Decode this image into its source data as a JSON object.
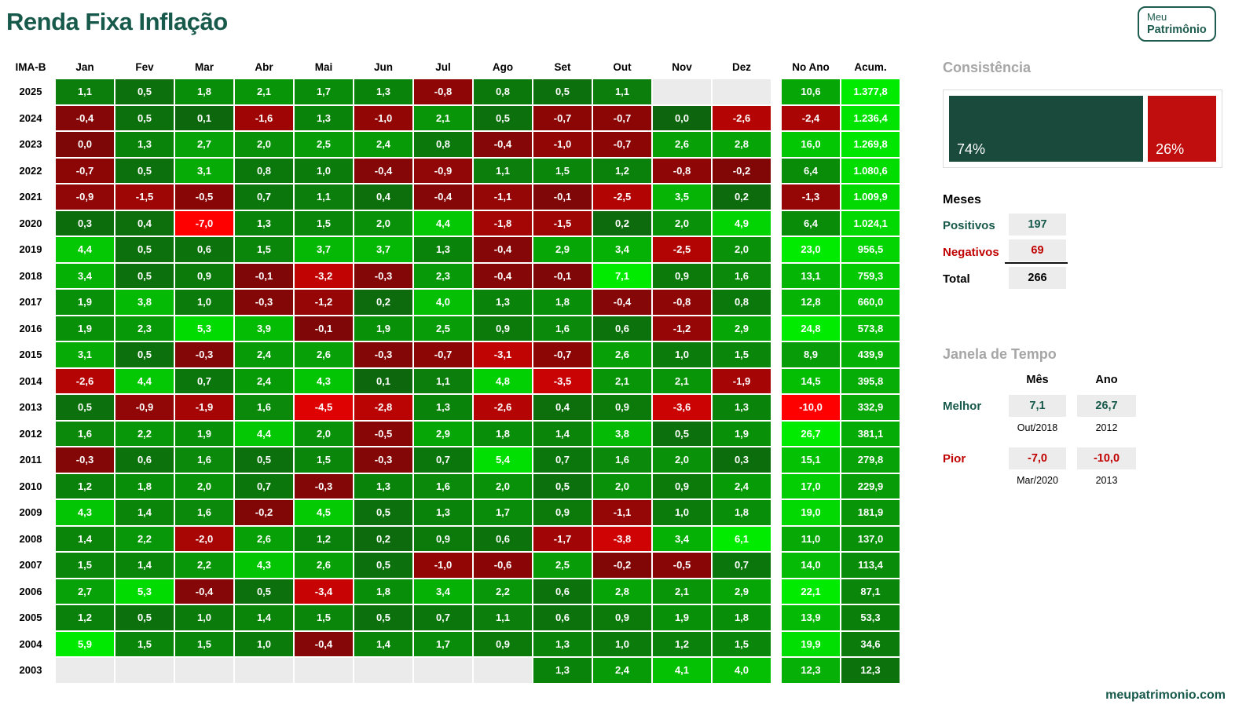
{
  "title": "Renda Fixa Inflação",
  "logo": {
    "line1": "Meu",
    "line2": "Patrimônio"
  },
  "footer": {
    "site": "meupatrimonio.com"
  },
  "colors": {
    "brand_green": "#17594a",
    "positive_dark_green": "#0d660d",
    "positive_bright_green": "#00eb00",
    "negative_dark_red": "#7d0707",
    "negative_bright_red": "#ff0000",
    "consistency_green": "#1a4a3c",
    "consistency_red": "#c00d0d",
    "blank_cell_gray": "#ebebeb",
    "value_box_gray": "#ececec",
    "section_title_gray": "#a6a6a6"
  },
  "chart_data": {
    "type": "heatmap",
    "title": "Renda Fixa Inflação",
    "index_label": "IMA-B",
    "columns": [
      "Jan",
      "Fev",
      "Mar",
      "Abr",
      "Mai",
      "Jun",
      "Jul",
      "Ago",
      "Set",
      "Out",
      "Nov",
      "Dez"
    ],
    "summary_columns": [
      "No Ano",
      "Acum."
    ],
    "rows": [
      {
        "year": "2025",
        "months": [
          "1,1",
          "0,5",
          "1,8",
          "2,1",
          "1,7",
          "1,3",
          "-0,8",
          "0,8",
          "0,5",
          "1,1",
          "",
          ""
        ],
        "no_ano": "10,6",
        "acum": "1.377,8"
      },
      {
        "year": "2024",
        "months": [
          "-0,4",
          "0,5",
          "0,1",
          "-1,6",
          "1,3",
          "-1,0",
          "2,1",
          "0,5",
          "-0,7",
          "-0,7",
          "0,0",
          "-2,6"
        ],
        "no_ano": "-2,4",
        "acum": "1.236,4"
      },
      {
        "year": "2023",
        "months": [
          "0,0",
          "1,3",
          "2,7",
          "2,0",
          "2,5",
          "2,4",
          "0,8",
          "-0,4",
          "-1,0",
          "-0,7",
          "2,6",
          "2,8"
        ],
        "no_ano": "16,0",
        "acum": "1.269,8"
      },
      {
        "year": "2022",
        "months": [
          "-0,7",
          "0,5",
          "3,1",
          "0,8",
          "1,0",
          "-0,4",
          "-0,9",
          "1,1",
          "1,5",
          "1,2",
          "-0,8",
          "-0,2"
        ],
        "no_ano": "6,4",
        "acum": "1.080,6"
      },
      {
        "year": "2021",
        "months": [
          "-0,9",
          "-1,5",
          "-0,5",
          "0,7",
          "1,1",
          "0,4",
          "-0,4",
          "-1,1",
          "-0,1",
          "-2,5",
          "3,5",
          "0,2"
        ],
        "no_ano": "-1,3",
        "acum": "1.009,9"
      },
      {
        "year": "2020",
        "months": [
          "0,3",
          "0,4",
          "-7,0",
          "1,3",
          "1,5",
          "2,0",
          "4,4",
          "-1,8",
          "-1,5",
          "0,2",
          "2,0",
          "4,9"
        ],
        "no_ano": "6,4",
        "acum": "1.024,1"
      },
      {
        "year": "2019",
        "months": [
          "4,4",
          "0,5",
          "0,6",
          "1,5",
          "3,7",
          "3,7",
          "1,3",
          "-0,4",
          "2,9",
          "3,4",
          "-2,5",
          "2,0"
        ],
        "no_ano": "23,0",
        "acum": "956,5"
      },
      {
        "year": "2018",
        "months": [
          "3,4",
          "0,5",
          "0,9",
          "-0,1",
          "-3,2",
          "-0,3",
          "2,3",
          "-0,4",
          "-0,1",
          "7,1",
          "0,9",
          "1,6"
        ],
        "no_ano": "13,1",
        "acum": "759,3"
      },
      {
        "year": "2017",
        "months": [
          "1,9",
          "3,8",
          "1,0",
          "-0,3",
          "-1,2",
          "0,2",
          "4,0",
          "1,3",
          "1,8",
          "-0,4",
          "-0,8",
          "0,8"
        ],
        "no_ano": "12,8",
        "acum": "660,0"
      },
      {
        "year": "2016",
        "months": [
          "1,9",
          "2,3",
          "5,3",
          "3,9",
          "-0,1",
          "1,9",
          "2,5",
          "0,9",
          "1,6",
          "0,6",
          "-1,2",
          "2,9"
        ],
        "no_ano": "24,8",
        "acum": "573,8"
      },
      {
        "year": "2015",
        "months": [
          "3,1",
          "0,5",
          "-0,3",
          "2,4",
          "2,6",
          "-0,3",
          "-0,7",
          "-3,1",
          "-0,7",
          "2,6",
          "1,0",
          "1,5"
        ],
        "no_ano": "8,9",
        "acum": "439,9"
      },
      {
        "year": "2014",
        "months": [
          "-2,6",
          "4,4",
          "0,7",
          "2,4",
          "4,3",
          "0,1",
          "1,1",
          "4,8",
          "-3,5",
          "2,1",
          "2,1",
          "-1,9"
        ],
        "no_ano": "14,5",
        "acum": "395,8"
      },
      {
        "year": "2013",
        "months": [
          "0,5",
          "-0,9",
          "-1,9",
          "1,6",
          "-4,5",
          "-2,8",
          "1,3",
          "-2,6",
          "0,4",
          "0,9",
          "-3,6",
          "1,3"
        ],
        "no_ano": "-10,0",
        "acum": "332,9"
      },
      {
        "year": "2012",
        "months": [
          "1,6",
          "2,2",
          "1,9",
          "4,4",
          "2,0",
          "-0,5",
          "2,9",
          "1,8",
          "1,4",
          "3,8",
          "0,5",
          "1,9"
        ],
        "no_ano": "26,7",
        "acum": "381,1"
      },
      {
        "year": "2011",
        "months": [
          "-0,3",
          "0,6",
          "1,6",
          "0,5",
          "1,5",
          "-0,3",
          "0,7",
          "5,4",
          "0,7",
          "1,6",
          "2,0",
          "0,3"
        ],
        "no_ano": "15,1",
        "acum": "279,8"
      },
      {
        "year": "2010",
        "months": [
          "1,2",
          "1,8",
          "2,0",
          "0,7",
          "-0,3",
          "1,3",
          "1,6",
          "2,0",
          "0,5",
          "2,0",
          "0,9",
          "2,4"
        ],
        "no_ano": "17,0",
        "acum": "229,9"
      },
      {
        "year": "2009",
        "months": [
          "4,3",
          "1,4",
          "1,6",
          "-0,2",
          "4,5",
          "0,5",
          "1,3",
          "1,7",
          "0,9",
          "-1,1",
          "1,0",
          "1,8"
        ],
        "no_ano": "19,0",
        "acum": "181,9"
      },
      {
        "year": "2008",
        "months": [
          "1,4",
          "2,2",
          "-2,0",
          "2,6",
          "1,2",
          "0,2",
          "0,9",
          "0,6",
          "-1,7",
          "-3,8",
          "3,4",
          "6,1"
        ],
        "no_ano": "11,0",
        "acum": "137,0"
      },
      {
        "year": "2007",
        "months": [
          "1,5",
          "1,4",
          "2,2",
          "4,3",
          "2,6",
          "0,5",
          "-1,0",
          "-0,6",
          "2,5",
          "-0,2",
          "-0,5",
          "0,7"
        ],
        "no_ano": "14,0",
        "acum": "113,4"
      },
      {
        "year": "2006",
        "months": [
          "2,7",
          "5,3",
          "-0,4",
          "0,5",
          "-3,4",
          "1,8",
          "3,4",
          "2,2",
          "0,6",
          "2,8",
          "2,1",
          "2,9"
        ],
        "no_ano": "22,1",
        "acum": "87,1"
      },
      {
        "year": "2005",
        "months": [
          "1,2",
          "0,5",
          "1,0",
          "1,4",
          "1,5",
          "0,5",
          "0,7",
          "1,1",
          "0,6",
          "0,9",
          "1,9",
          "1,8"
        ],
        "no_ano": "13,9",
        "acum": "53,3"
      },
      {
        "year": "2004",
        "months": [
          "5,9",
          "1,5",
          "1,5",
          "1,0",
          "-0,4",
          "1,4",
          "1,7",
          "0,9",
          "1,3",
          "1,0",
          "1,2",
          "1,5"
        ],
        "no_ano": "19,9",
        "acum": "34,6"
      },
      {
        "year": "2003",
        "months": [
          "",
          "",
          "",
          "",
          "",
          "",
          "",
          "",
          "1,3",
          "2,4",
          "4,1",
          "4,0"
        ],
        "no_ano": "12,3",
        "acum": "12,3"
      }
    ],
    "negative_zero_cells": [
      {
        "year": "2023",
        "month_index": 0
      }
    ]
  },
  "consistencia": {
    "title": "Consistência",
    "positive_pct": "74%",
    "negative_pct": "26%"
  },
  "meses": {
    "title": "Meses",
    "positivos_label": "Positivos",
    "positivos_value": "197",
    "negativos_label": "Negativos",
    "negativos_value": "69",
    "total_label": "Total",
    "total_value": "266"
  },
  "janela": {
    "title": "Janela de Tempo",
    "col_mes": "Mês",
    "col_ano": "Ano",
    "melhor_label": "Melhor",
    "melhor_mes": "7,1",
    "melhor_mes_sub": "Out/2018",
    "melhor_ano": "26,7",
    "melhor_ano_sub": "2012",
    "pior_label": "Pior",
    "pior_mes": "-7,0",
    "pior_mes_sub": "Mar/2020",
    "pior_ano": "-10,0",
    "pior_ano_sub": "2013"
  }
}
